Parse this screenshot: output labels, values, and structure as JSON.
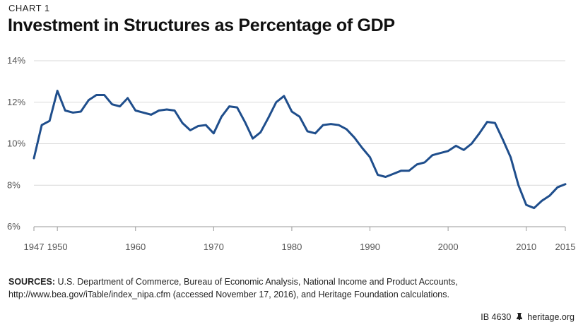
{
  "header": {
    "chart_label": "CHART 1",
    "title": "Investment in Structures as Percentage of GDP"
  },
  "chart_data": {
    "type": "line",
    "title": "Investment in Structures as Percentage of GDP",
    "xlabel": "",
    "ylabel": "",
    "xlim": [
      1947,
      2015
    ],
    "ylim": [
      6,
      14
    ],
    "x_ticks": [
      1947,
      1950,
      1960,
      1970,
      1980,
      1990,
      2000,
      2010,
      2015
    ],
    "y_ticks": [
      6,
      8,
      10,
      12,
      14
    ],
    "y_tick_suffix": "%",
    "grid": "horizontal",
    "line_color": "#1f4e8c",
    "series": [
      {
        "x": [
          1947,
          1948,
          1949,
          1950,
          1951,
          1952,
          1953,
          1954,
          1955,
          1956,
          1957,
          1958,
          1959,
          1960,
          1961,
          1962,
          1963,
          1964,
          1965,
          1966,
          1967,
          1968,
          1969,
          1970,
          1971,
          1972,
          1973,
          1974,
          1975,
          1976,
          1977,
          1978,
          1979,
          1980,
          1981,
          1982,
          1983,
          1984,
          1985,
          1986,
          1987,
          1988,
          1989,
          1990,
          1991,
          1992,
          1993,
          1994,
          1995,
          1996,
          1997,
          1998,
          1999,
          2000,
          2001,
          2002,
          2003,
          2004,
          2005,
          2006,
          2007,
          2008,
          2009,
          2010,
          2011,
          2012,
          2013,
          2014,
          2015
        ],
        "values": [
          9.3,
          10.9,
          11.1,
          12.55,
          11.6,
          11.5,
          11.55,
          12.1,
          12.35,
          12.35,
          11.9,
          11.8,
          12.2,
          11.6,
          11.5,
          11.4,
          11.6,
          11.65,
          11.6,
          11.0,
          10.65,
          10.85,
          10.9,
          10.5,
          11.3,
          11.8,
          11.75,
          11.05,
          10.25,
          10.55,
          11.25,
          12.0,
          12.3,
          11.55,
          11.3,
          10.6,
          10.5,
          10.9,
          10.95,
          10.9,
          10.7,
          10.3,
          9.8,
          9.35,
          8.5,
          8.4,
          8.55,
          8.7,
          8.7,
          9.0,
          9.1,
          9.45,
          9.55,
          9.65,
          9.9,
          9.7,
          10.0,
          10.5,
          11.05,
          11.0,
          10.2,
          9.35,
          8.0,
          7.05,
          6.9,
          7.25,
          7.5,
          7.9,
          8.05
        ]
      }
    ]
  },
  "sources": {
    "label": "SOURCES:",
    "text": " U.S. Department of Commerce, Bureau of Economic Analysis, National Income and Product Accounts, http://www.bea.gov/iTable/index_nipa.cfm (accessed November 17, 2016), and Heritage Foundation calculations."
  },
  "footer": {
    "id": "IB 4630",
    "site": "heritage.org",
    "icon": "liberty-bell-icon"
  }
}
